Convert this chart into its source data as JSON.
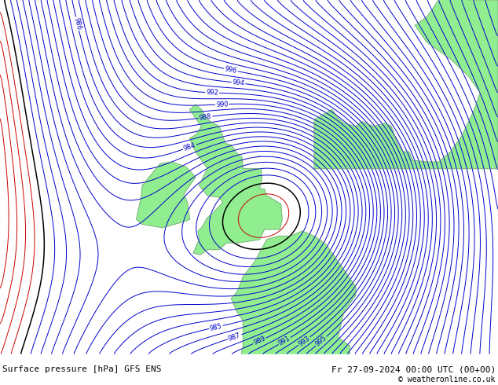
{
  "title_left": "Surface pressure [hPa] GFS ENS",
  "title_right": "Fr 27-09-2024 00:00 UTC (00+00)",
  "copyright": "© weatheronline.co.uk",
  "background_color": "#d0d0d8",
  "land_color": "#90EE90",
  "contour_color_blue": "#0000CD",
  "contour_color_red": "#CC0000",
  "contour_color_black": "#000000",
  "text_color_blue": "#0000CD",
  "font_size_labels": 6,
  "font_size_title": 8,
  "lon_min": -22,
  "lon_max": 20,
  "lat_min": 44,
  "lat_max": 65,
  "low_lon": 3.5,
  "low_lat": 53.5,
  "low_value": 984.0,
  "p_red_max": 974,
  "p_black": 975,
  "p_blue_min": 976
}
